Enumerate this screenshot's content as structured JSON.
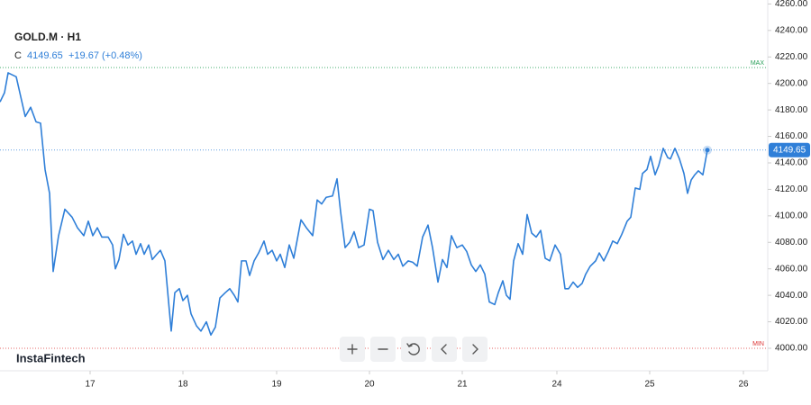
{
  "chart_data": {
    "type": "line",
    "symbol": "GOLD.M · H1",
    "close_label": "C",
    "close": "4149.65",
    "change": "+19.67 (+0.48%)",
    "brand": "InstaFintech",
    "color": "#2f7fd8",
    "x": [
      0,
      5,
      9,
      18,
      22,
      28,
      34,
      40,
      45,
      50,
      55,
      59,
      65,
      72,
      80,
      86,
      93,
      98,
      103,
      108,
      113,
      120,
      125,
      128,
      132,
      137,
      142,
      147,
      151,
      156,
      160,
      165,
      169,
      174,
      178,
      183,
      190,
      194,
      199,
      203,
      208,
      212,
      218,
      223,
      229,
      234,
      239,
      244,
      250,
      255,
      260,
      264,
      268,
      273,
      277,
      282,
      287,
      293,
      297,
      302,
      307,
      311,
      316,
      321,
      326,
      334,
      340,
      347,
      352,
      357,
      362,
      369,
      374,
      378,
      383,
      388,
      393,
      398,
      404,
      410,
      414,
      419,
      425,
      431,
      437,
      442,
      447,
      453,
      458,
      463,
      469,
      475,
      480,
      486,
      491,
      496,
      501,
      507,
      513,
      518,
      523,
      528,
      533,
      538,
      543,
      549,
      553,
      558,
      562,
      566,
      570,
      575,
      580,
      585,
      590,
      595,
      600,
      605,
      610,
      616,
      622,
      627,
      631,
      636,
      641,
      646,
      650,
      655,
      661,
      665,
      670,
      675,
      680,
      685,
      690,
      696,
      700,
      705,
      710,
      713,
      718,
      722,
      727,
      731,
      736,
      741,
      744,
      749,
      754,
      759,
      763,
      767,
      771,
      775,
      780,
      785
    ],
    "values": [
      4186,
      4193,
      4208,
      4205,
      4193,
      4175,
      4182,
      4171,
      4170,
      4135,
      4117,
      4058,
      4085,
      4105,
      4099,
      4091,
      4085,
      4096,
      4085,
      4091,
      4084,
      4084,
      4078,
      4060,
      4067,
      4086,
      4078,
      4081,
      4071,
      4079,
      4071,
      4078,
      4067,
      4071,
      4074,
      4066,
      4013,
      4042,
      4045,
      4036,
      4040,
      4026,
      4017,
      4013,
      4020,
      4010,
      4016,
      4038,
      4042,
      4045,
      4040,
      4035,
      4066,
      4066,
      4055,
      4066,
      4072,
      4081,
      4071,
      4074,
      4066,
      4071,
      4061,
      4078,
      4068,
      4097,
      4091,
      4085,
      4112,
      4109,
      4114,
      4115,
      4128,
      4103,
      4076,
      4080,
      4088,
      4076,
      4078,
      4105,
      4104,
      4080,
      4067,
      4074,
      4067,
      4071,
      4062,
      4066,
      4065,
      4062,
      4084,
      4093,
      4076,
      4050,
      4067,
      4061,
      4085,
      4076,
      4078,
      4073,
      4063,
      4058,
      4063,
      4056,
      4035,
      4033,
      4042,
      4051,
      4040,
      4037,
      4066,
      4079,
      4071,
      4101,
      4087,
      4084,
      4089,
      4068,
      4066,
      4078,
      4071,
      4045,
      4045,
      4050,
      4046,
      4049,
      4056,
      4062,
      4066,
      4072,
      4066,
      4073,
      4081,
      4079,
      4086,
      4096,
      4099,
      4121,
      4120,
      4132,
      4135,
      4145,
      4131,
      4138,
      4151,
      4144,
      4143,
      4151,
      4143,
      4132,
      4117,
      4127,
      4131,
      4134,
      4131,
      4149.65
    ],
    "last_price": {
      "value": 4149.65,
      "label": "4149.65"
    },
    "max_level": {
      "value": 4212,
      "label": "MAX"
    },
    "min_level": {
      "value": 4000,
      "label": "MIN"
    },
    "xlim": [
      0,
      852
    ],
    "xticks": [
      {
        "value": 100,
        "label": "17"
      },
      {
        "value": 203,
        "label": "18"
      },
      {
        "value": 307,
        "label": "19"
      },
      {
        "value": 410,
        "label": "20"
      },
      {
        "value": 513,
        "label": "21"
      },
      {
        "value": 618,
        "label": "24"
      },
      {
        "value": 721,
        "label": "25"
      },
      {
        "value": 825,
        "label": "26"
      }
    ],
    "ylim": [
      3983,
      4263
    ],
    "yticks": [
      {
        "value": 4000,
        "label": "4000.00"
      },
      {
        "value": 4020,
        "label": "4020.00"
      },
      {
        "value": 4040,
        "label": "4040.00"
      },
      {
        "value": 4060,
        "label": "4060.00"
      },
      {
        "value": 4080,
        "label": "4080.00"
      },
      {
        "value": 4100,
        "label": "4100.00"
      },
      {
        "value": 4120,
        "label": "4120.00"
      },
      {
        "value": 4140,
        "label": "4140.00"
      },
      {
        "value": 4160,
        "label": "4160.00"
      },
      {
        "value": 4180,
        "label": "4180.00"
      },
      {
        "value": 4200,
        "label": "4200.00"
      },
      {
        "value": 4220,
        "label": "4220.00"
      },
      {
        "value": 4240,
        "label": "4240.00"
      },
      {
        "value": 4260,
        "label": "4260.00"
      }
    ]
  }
}
